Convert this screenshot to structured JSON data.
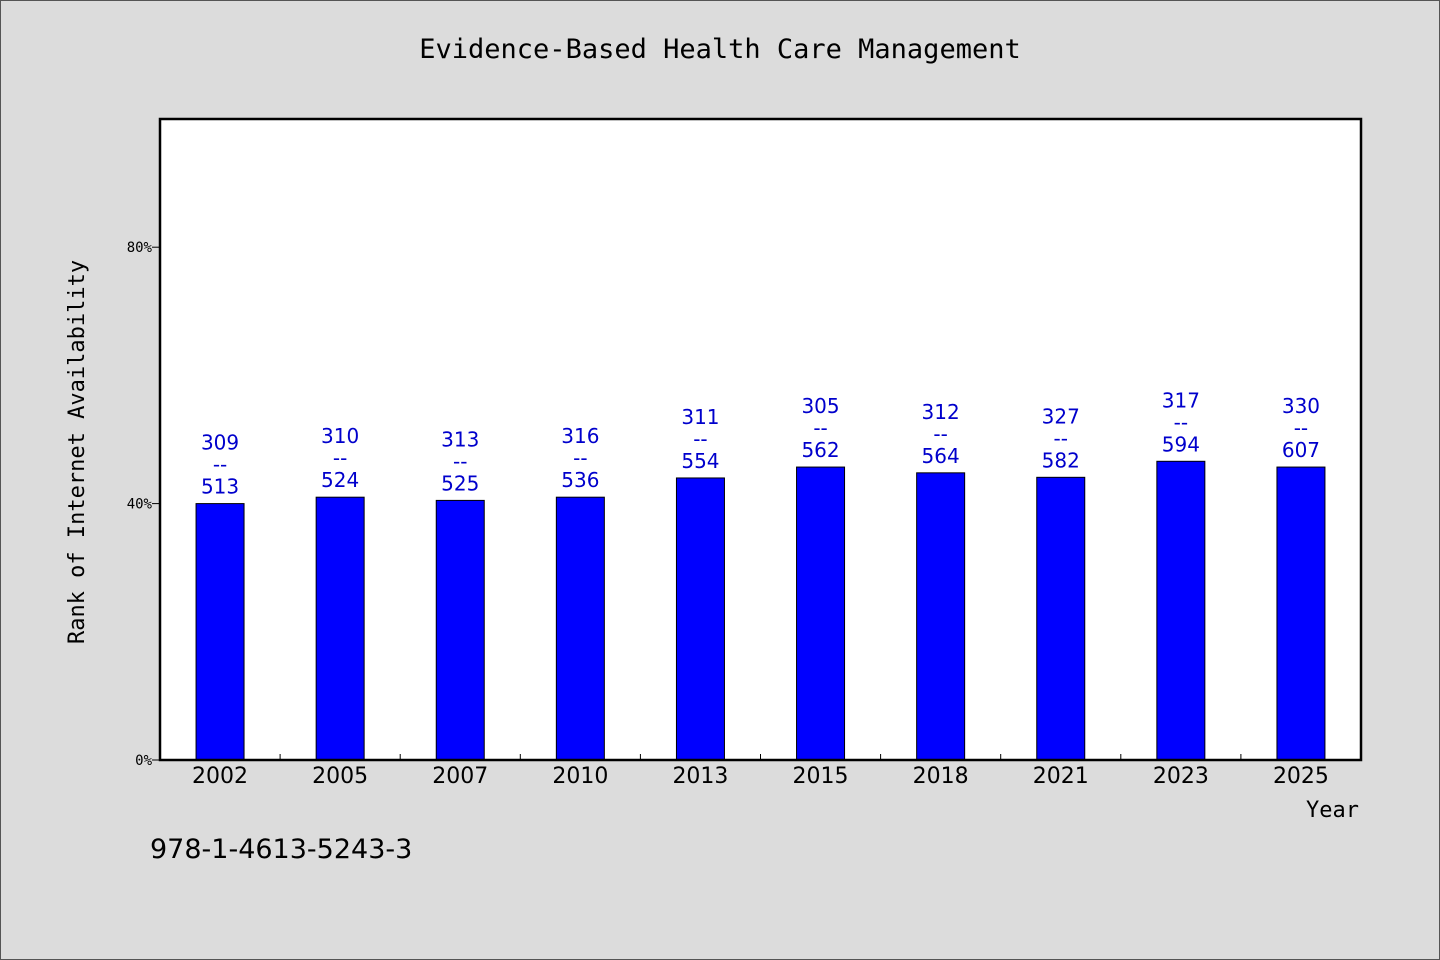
{
  "chart_data": {
    "type": "bar",
    "title": "Evidence-Based Health Care Management",
    "xlabel": "Year",
    "ylabel": "Rank of Internet Availability",
    "categories": [
      "2002",
      "2005",
      "2007",
      "2010",
      "2013",
      "2015",
      "2018",
      "2021",
      "2023",
      "2025"
    ],
    "values": [
      40,
      41,
      40.5,
      41,
      44,
      45.7,
      44.8,
      44.1,
      46.6,
      45.7
    ],
    "data_labels": [
      [
        "309",
        "--",
        "513"
      ],
      [
        "310",
        "--",
        "524"
      ],
      [
        "313",
        "--",
        "525"
      ],
      [
        "316",
        "--",
        "536"
      ],
      [
        "311",
        "--",
        "554"
      ],
      [
        "305",
        "--",
        "562"
      ],
      [
        "312",
        "--",
        "564"
      ],
      [
        "327",
        "--",
        "582"
      ],
      [
        "317",
        "--",
        "594"
      ],
      [
        "330",
        "--",
        "607"
      ]
    ],
    "ylim": [
      0,
      100
    ],
    "yticks": [
      {
        "value": 0,
        "label": "0%"
      },
      {
        "value": 40,
        "label": "40%"
      },
      {
        "value": 80,
        "label": "80%"
      }
    ],
    "grid": false,
    "bar_color": "#0000ff",
    "label_color": "#0000cc"
  },
  "footnote": "978-1-4613-5243-3"
}
